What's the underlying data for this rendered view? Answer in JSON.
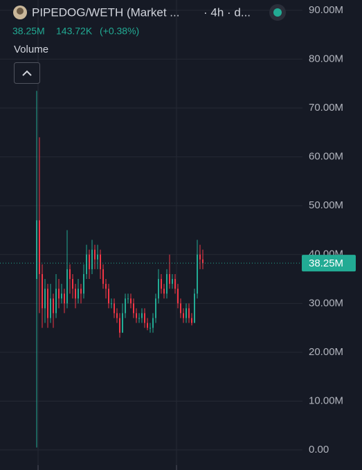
{
  "chart_data": {
    "type": "candlestick",
    "title": "PIPEDOG/WETH (Market ...",
    "subtitle": "· 4h · d...",
    "legend_values": [
      "38.25M",
      "143.72K",
      "(+0.38%)"
    ],
    "volume_label": "Volume",
    "up_color": "#22ab94",
    "down_color": "#f23645",
    "ylim": [
      -4.1,
      92.1
    ],
    "yticks": [
      {
        "value": 90,
        "label": "90.00M"
      },
      {
        "value": 80,
        "label": "80.00M"
      },
      {
        "value": 70,
        "label": "70.00M"
      },
      {
        "value": 60,
        "label": "60.00M"
      },
      {
        "value": 50,
        "label": "50.00M"
      },
      {
        "value": 40,
        "label": "40.00M"
      },
      {
        "value": 30,
        "label": "30.00M"
      },
      {
        "value": 20,
        "label": "20.00M"
      },
      {
        "value": 10,
        "label": "10.00M"
      },
      {
        "value": 0,
        "label": "0.00"
      }
    ],
    "grid": true,
    "last_price": {
      "value": 38.25,
      "label": "38.25M"
    },
    "series": {
      "open": [
        35,
        47,
        36,
        29,
        33,
        27,
        31,
        28,
        33,
        31,
        32,
        30,
        37,
        35,
        33,
        31,
        33,
        32,
        36,
        40,
        37,
        41,
        39,
        40,
        37,
        34,
        33,
        30,
        30,
        28,
        27,
        24,
        28,
        31,
        31,
        30,
        28,
        27,
        27,
        28,
        26,
        25,
        25,
        27,
        31,
        35,
        33,
        32,
        36,
        34,
        35,
        33,
        30,
        28,
        27,
        29,
        27,
        26,
        32,
        40,
        39
      ],
      "high": [
        73.5,
        64,
        38,
        35,
        34,
        34,
        32,
        36,
        35,
        34,
        33,
        45,
        38,
        36,
        34,
        35,
        34,
        38,
        42,
        41,
        43,
        42,
        42,
        41,
        38,
        35,
        34,
        31,
        31,
        29,
        28,
        30,
        32,
        32,
        32,
        31,
        29,
        28,
        29,
        29,
        27,
        26,
        28,
        32,
        37,
        36,
        34,
        37,
        40,
        36,
        36,
        34,
        31,
        29,
        30,
        30,
        28,
        33,
        43,
        42,
        41
      ],
      "low": [
        0.5,
        28,
        25,
        26,
        25,
        26,
        25,
        27,
        29,
        30,
        28,
        29,
        32,
        31,
        29,
        30,
        30,
        31,
        35,
        35,
        36,
        37,
        37,
        35,
        33,
        31,
        29,
        29,
        27,
        26,
        23,
        24,
        27,
        30,
        29,
        27,
        26,
        26,
        26,
        25,
        24.5,
        24,
        24,
        26,
        30,
        32,
        31,
        31,
        33,
        33,
        32,
        29,
        27,
        26,
        26,
        26,
        25.5,
        26,
        31,
        37,
        37
      ],
      "close": [
        47,
        36,
        29,
        33,
        27,
        31,
        28,
        33,
        31,
        32,
        30,
        37,
        35,
        33,
        31,
        33,
        32,
        36,
        40,
        37,
        41,
        39,
        40,
        37,
        34,
        33,
        30,
        30,
        28,
        27,
        24,
        28,
        31,
        31,
        30,
        28,
        27,
        27,
        28,
        26,
        25,
        25,
        27,
        31,
        35,
        33,
        32,
        36,
        34,
        35,
        33,
        30,
        28,
        27,
        29,
        27,
        26,
        32,
        40,
        39,
        38.25
      ]
    }
  }
}
